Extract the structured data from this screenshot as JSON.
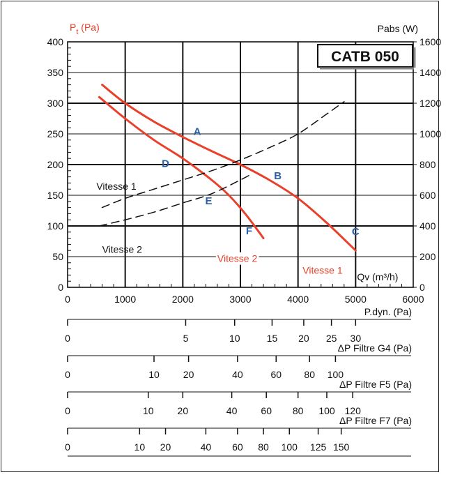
{
  "chart_data": {
    "type": "line",
    "left_axis_label": "Pt (Pa)",
    "left_axis_label_main": "P",
    "left_axis_label_sub": "t",
    "left_axis_label_unit": "(Pa)",
    "right_axis_label": "Pabs (W)",
    "xlabel": "Qv (m³/h)",
    "model_box": "CATB 050",
    "xlim": [
      0,
      6000
    ],
    "ylim_left": [
      0,
      400
    ],
    "ylim_right": [
      0,
      1600
    ],
    "x_ticks": [
      "0",
      "1000",
      "2000",
      "3000",
      "4000",
      "5000",
      "6000"
    ],
    "y_left_ticks": [
      "0",
      "50",
      "100",
      "150",
      "200",
      "250",
      "300",
      "350",
      "400"
    ],
    "y_right_ticks": [
      "0",
      "200",
      "400",
      "600",
      "800",
      "1000",
      "1200",
      "1400",
      "1600"
    ],
    "grid": true,
    "series": [
      {
        "name": "Vitesse 1",
        "axis": "left",
        "color": "#e8402a",
        "x": [
          600,
          1000,
          1500,
          2000,
          2500,
          3000,
          3500,
          4000,
          4500,
          5000
        ],
        "y": [
          330,
          300,
          270,
          245,
          222,
          200,
          175,
          145,
          105,
          60
        ]
      },
      {
        "name": "Vitesse 2",
        "axis": "left",
        "color": "#e8402a",
        "x": [
          550,
          1000,
          1500,
          2000,
          2500,
          2800,
          3100,
          3400
        ],
        "y": [
          310,
          275,
          240,
          210,
          175,
          150,
          118,
          80
        ]
      },
      {
        "name": "Vitesse 1",
        "axis": "right",
        "color": "#111111",
        "dash": true,
        "x": [
          600,
          1000,
          1500,
          2000,
          2500,
          3000,
          3500,
          4000,
          4500,
          4800
        ],
        "y": [
          520,
          580,
          640,
          700,
          760,
          830,
          910,
          1000,
          1130,
          1210
        ]
      },
      {
        "name": "Vitesse 2",
        "axis": "right",
        "color": "#111111",
        "dash": true,
        "x": [
          550,
          1000,
          1500,
          2000,
          2500,
          3000,
          3200
        ],
        "y": [
          400,
          440,
          490,
          550,
          610,
          700,
          740
        ]
      }
    ],
    "points": [
      {
        "label": "A",
        "x": 2250,
        "y": 255
      },
      {
        "label": "B",
        "x": 3650,
        "y": 183
      },
      {
        "label": "C",
        "x": 5000,
        "y": 92
      },
      {
        "label": "D",
        "x": 1700,
        "y": 203
      },
      {
        "label": "E",
        "x": 2450,
        "y": 142
      },
      {
        "label": "F",
        "x": 3150,
        "y": 93
      }
    ],
    "curve_labels": [
      {
        "text": "Vitesse 1",
        "color": "#111111",
        "x": 500,
        "y": 165
      },
      {
        "text": "Vitesse 2",
        "color": "#111111",
        "x": 600,
        "y": 62
      },
      {
        "text": "Vitesse 2",
        "color": "#e8402a",
        "x": 2600,
        "y": 47
      },
      {
        "text": "Vitesse 1",
        "color": "#e8402a",
        "x": 4080,
        "y": 28
      }
    ],
    "scales": [
      {
        "label": "P.dyn. (Pa)",
        "ticks": [
          {
            "v": "0",
            "x": 0
          },
          {
            "v": "5",
            "x": 2050
          },
          {
            "v": "10",
            "x": 2900
          },
          {
            "v": "15",
            "x": 3550
          },
          {
            "v": "20",
            "x": 4100
          },
          {
            "v": "25",
            "x": 4580
          },
          {
            "v": "30",
            "x": 5000
          }
        ]
      },
      {
        "label": "ΔP Filtre G4 (Pa)",
        "ticks": [
          {
            "v": "0",
            "x": 0
          },
          {
            "v": "10",
            "x": 1500
          },
          {
            "v": "20",
            "x": 2100
          },
          {
            "v": "40",
            "x": 2950
          },
          {
            "v": "60",
            "x": 3620
          },
          {
            "v": "80",
            "x": 4200
          },
          {
            "v": "100",
            "x": 4650
          }
        ]
      },
      {
        "label": "ΔP Filtre F5 (Pa)",
        "ticks": [
          {
            "v": "0",
            "x": 0
          },
          {
            "v": "10",
            "x": 1400
          },
          {
            "v": "20",
            "x": 2000
          },
          {
            "v": "40",
            "x": 2850
          },
          {
            "v": "60",
            "x": 3450
          },
          {
            "v": "80",
            "x": 4000
          },
          {
            "v": "100",
            "x": 4500
          },
          {
            "v": "120",
            "x": 4950
          }
        ]
      },
      {
        "label": "ΔP Filtre F7 (Pa)",
        "ticks": [
          {
            "v": "0",
            "x": 0
          },
          {
            "v": "10",
            "x": 1250
          },
          {
            "v": "20",
            "x": 1700
          },
          {
            "v": "40",
            "x": 2400
          },
          {
            "v": "60",
            "x": 2950
          },
          {
            "v": "80",
            "x": 3400
          },
          {
            "v": "100",
            "x": 3850
          },
          {
            "v": "125",
            "x": 4350
          },
          {
            "v": "150",
            "x": 4750
          }
        ]
      }
    ]
  }
}
